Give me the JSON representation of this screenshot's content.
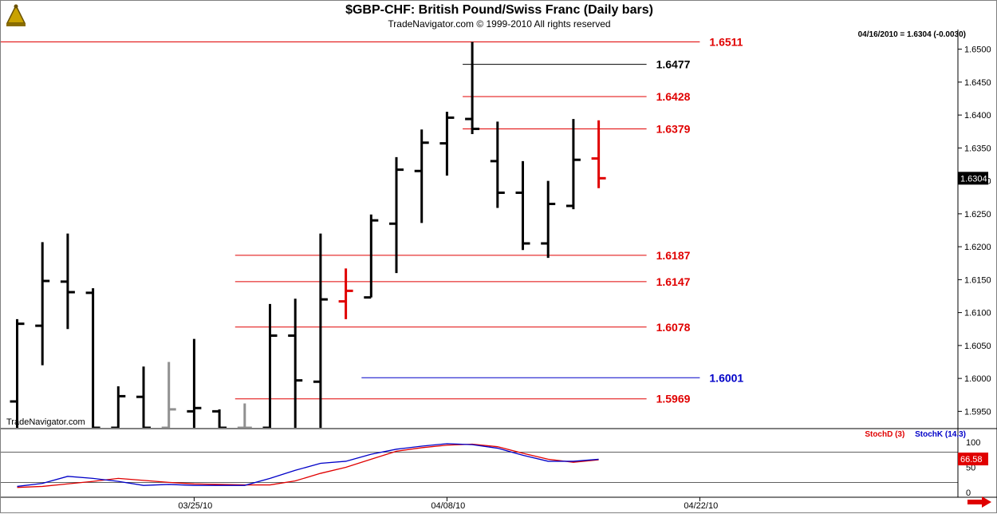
{
  "header": {
    "title": "$GBP-CHF:  British Pound/Swiss Franc  (Daily bars)",
    "subtitle": "TradeNavigator.com © 1999-2010 All rights reserved",
    "last_quote": "04/16/2010 = 1.6304 (-0.0030)",
    "watermark": "TradeNavigator.com"
  },
  "icons": {
    "logo": "sextant-logo-icon",
    "scroll": "red-arrow-right-icon"
  },
  "colors": {
    "bar": "#000000",
    "bar_grey": "#909090",
    "bar_red": "#e00000",
    "level_red": "#e00000",
    "level_black": "#000000",
    "level_blue": "#0000c8",
    "stochD": "#e00000",
    "stochK": "#0000c8",
    "price_badge_bg": "#000000",
    "stoch_badge_bg": "#e00000"
  },
  "chart_data": [
    {
      "type": "ohlc",
      "x_dates": [
        "03/16/10",
        "03/17/10",
        "03/18/10",
        "03/19/10",
        "03/22/10",
        "03/23/10",
        "03/24/10",
        "03/25/10",
        "03/26/10",
        "03/29/10",
        "03/30/10",
        "03/31/10",
        "04/01/10",
        "04/02/10",
        "04/05/10",
        "04/06/10",
        "04/07/10",
        "04/08/10",
        "04/09/10",
        "04/12/10",
        "04/13/10",
        "04/14/10",
        "04/15/10",
        "04/16/10"
      ],
      "x_tick_labels": [
        "03/25/10",
        "04/08/10",
        "04/22/10"
      ],
      "ylim": [
        1.5925,
        1.6525
      ],
      "y_ticks": [
        "1.5950",
        "1.6000",
        "1.6050",
        "1.6100",
        "1.6150",
        "1.6200",
        "1.6250",
        "1.6300",
        "1.6350",
        "1.6400",
        "1.6450",
        "1.6500"
      ],
      "last_price": "1.6304",
      "bars": [
        {
          "d": "03/16/10",
          "o": 1.5965,
          "h": 1.609,
          "l": 1.5925,
          "c": 1.6083,
          "color": "black"
        },
        {
          "d": "03/17/10",
          "o": 1.608,
          "h": 1.6207,
          "l": 1.602,
          "c": 1.6148,
          "color": "black"
        },
        {
          "d": "03/18/10",
          "o": 1.6147,
          "h": 1.622,
          "l": 1.6075,
          "c": 1.6131,
          "color": "black"
        },
        {
          "d": "03/19/10",
          "o": 1.613,
          "h": 1.6137,
          "l": 1.5925,
          "c": 1.5925,
          "color": "black"
        },
        {
          "d": "03/22/10",
          "o": 1.5925,
          "h": 1.5988,
          "l": 1.5925,
          "c": 1.5973,
          "color": "black"
        },
        {
          "d": "03/23/10",
          "o": 1.5972,
          "h": 1.6018,
          "l": 1.5925,
          "c": 1.5925,
          "color": "black"
        },
        {
          "d": "03/24/10",
          "o": 1.5925,
          "h": 1.6025,
          "l": 1.5925,
          "c": 1.5953,
          "color": "grey"
        },
        {
          "d": "03/25/10",
          "o": 1.595,
          "h": 1.606,
          "l": 1.5925,
          "c": 1.5955,
          "color": "black"
        },
        {
          "d": "03/26/10",
          "o": 1.595,
          "h": 1.5953,
          "l": 1.5925,
          "c": 1.5925,
          "color": "black"
        },
        {
          "d": "03/29/10",
          "o": 1.5925,
          "h": 1.5962,
          "l": 1.5925,
          "c": 1.5925,
          "color": "grey"
        },
        {
          "d": "03/30/10",
          "o": 1.5925,
          "h": 1.6113,
          "l": 1.5925,
          "c": 1.6065,
          "color": "black"
        },
        {
          "d": "03/31/10",
          "o": 1.6065,
          "h": 1.6121,
          "l": 1.5925,
          "c": 1.5997,
          "color": "black"
        },
        {
          "d": "04/01/10",
          "o": 1.5995,
          "h": 1.622,
          "l": 1.5925,
          "c": 1.612,
          "color": "black"
        },
        {
          "d": "04/02/10",
          "o": 1.6117,
          "h": 1.6167,
          "l": 1.609,
          "c": 1.6133,
          "color": "red"
        },
        {
          "d": "04/05/10",
          "o": 1.6123,
          "h": 1.6249,
          "l": 1.6123,
          "c": 1.624,
          "color": "black"
        },
        {
          "d": "04/06/10",
          "o": 1.6235,
          "h": 1.6336,
          "l": 1.616,
          "c": 1.6317,
          "color": "black"
        },
        {
          "d": "04/07/10",
          "o": 1.6315,
          "h": 1.6378,
          "l": 1.6236,
          "c": 1.6358,
          "color": "black"
        },
        {
          "d": "04/08/10",
          "o": 1.6357,
          "h": 1.6405,
          "l": 1.6308,
          "c": 1.6396,
          "color": "black"
        },
        {
          "d": "04/09/10",
          "o": 1.6394,
          "h": 1.6511,
          "l": 1.6371,
          "c": 1.6379,
          "color": "black"
        },
        {
          "d": "04/12/10",
          "o": 1.633,
          "h": 1.639,
          "l": 1.6259,
          "c": 1.6282,
          "color": "black"
        },
        {
          "d": "04/13/10",
          "o": 1.6282,
          "h": 1.633,
          "l": 1.6195,
          "c": 1.6205,
          "color": "black"
        },
        {
          "d": "04/14/10",
          "o": 1.6205,
          "h": 1.63,
          "l": 1.6183,
          "c": 1.6265,
          "color": "black"
        },
        {
          "d": "04/15/10",
          "o": 1.6262,
          "h": 1.6394,
          "l": 1.6257,
          "c": 1.6332,
          "color": "black"
        },
        {
          "d": "04/16/10",
          "o": 1.6334,
          "h": 1.6392,
          "l": 1.6289,
          "c": 1.6304,
          "color": "red"
        }
      ],
      "levels": [
        {
          "value": 1.6511,
          "label": "1.6511",
          "color": "red",
          "from": "03/16/10",
          "to": "04/22/10"
        },
        {
          "value": 1.6477,
          "label": "1.6477",
          "color": "black",
          "from": "04/09/10",
          "to": "04/16/10"
        },
        {
          "value": 1.6428,
          "label": "1.6428",
          "color": "red",
          "from": "04/09/10",
          "to": "04/16/10"
        },
        {
          "value": 1.6379,
          "label": "1.6379",
          "color": "red",
          "from": "04/09/10",
          "to": "04/16/10"
        },
        {
          "value": 1.6187,
          "label": "1.6187",
          "color": "red",
          "from": "03/29/10",
          "to": "04/16/10"
        },
        {
          "value": 1.6147,
          "label": "1.6147",
          "color": "red",
          "from": "03/29/10",
          "to": "04/16/10"
        },
        {
          "value": 1.6078,
          "label": "1.6078",
          "color": "red",
          "from": "03/29/10",
          "to": "04/16/10"
        },
        {
          "value": 1.6001,
          "label": "1.6001",
          "color": "blue",
          "from": "04/05/10",
          "to": "04/22/10"
        },
        {
          "value": 1.5969,
          "label": "1.5969",
          "color": "red",
          "from": "03/29/10",
          "to": "04/16/10"
        }
      ]
    },
    {
      "type": "line",
      "ylim": [
        0,
        100
      ],
      "y_ticks": [
        "100",
        "50",
        "0"
      ],
      "reference_lines": [
        80,
        20
      ],
      "last_value": "66.58",
      "series": [
        {
          "name": "StochD (3)",
          "color": "red",
          "values": [
            10,
            12,
            17,
            22,
            28,
            24,
            20,
            17,
            16,
            15,
            15,
            23,
            38,
            50,
            66,
            82,
            89,
            94,
            96,
            91,
            78,
            66,
            60,
            65
          ]
        },
        {
          "name": "StochK (14,3)",
          "color": "blue",
          "values": [
            12,
            18,
            32,
            28,
            22,
            14,
            16,
            14,
            14,
            14,
            28,
            44,
            58,
            62,
            76,
            86,
            92,
            97,
            95,
            88,
            74,
            62,
            62,
            66
          ]
        }
      ]
    }
  ]
}
